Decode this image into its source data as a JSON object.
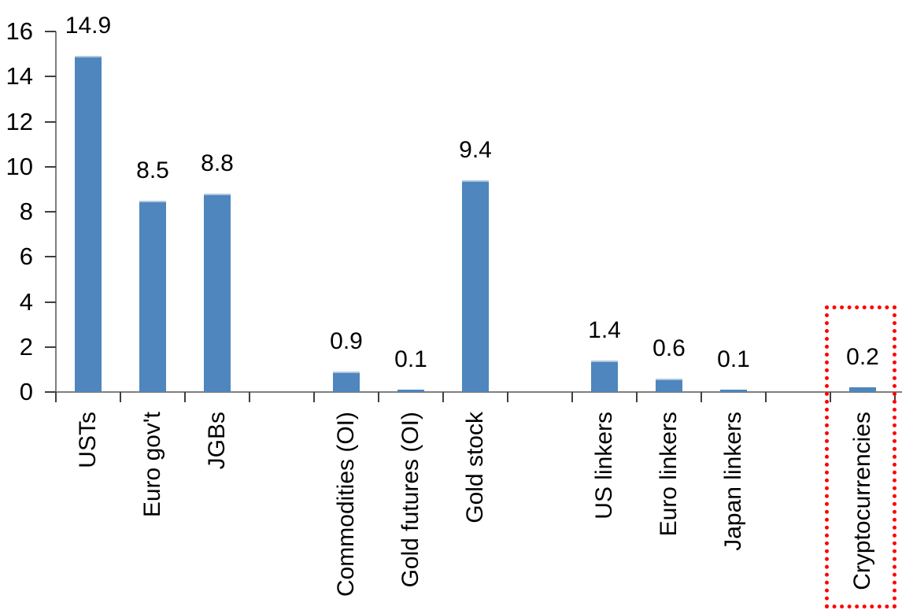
{
  "chart_data": {
    "type": "bar",
    "title": "",
    "xlabel": "",
    "ylabel": "",
    "ylim": [
      0,
      16
    ],
    "yticks": [
      0,
      2,
      4,
      6,
      8,
      10,
      12,
      14,
      16
    ],
    "grid": false,
    "legend": false,
    "categories": [
      "USTs",
      "Euro gov't",
      "JGBs",
      "Commodities (OI)",
      "Gold futures (OI)",
      "Gold stock",
      "US linkers",
      "Euro linkers",
      "Japan linkers",
      "Cryptocurrencies"
    ],
    "values": [
      14.9,
      8.5,
      8.8,
      0.9,
      0.1,
      9.4,
      1.4,
      0.6,
      0.1,
      0.2
    ],
    "slots": [
      {
        "label": "USTs",
        "value": 14.9,
        "value_label": "14.9"
      },
      {
        "label": "Euro gov't",
        "value": 8.5,
        "value_label": "8.5"
      },
      {
        "label": "JGBs",
        "value": 8.8,
        "value_label": "8.8"
      },
      null,
      {
        "label": "Commodities (OI)",
        "value": 0.9,
        "value_label": "0.9"
      },
      {
        "label": "Gold futures (OI)",
        "value": 0.1,
        "value_label": "0.1"
      },
      {
        "label": "Gold stock",
        "value": 9.4,
        "value_label": "9.4"
      },
      null,
      {
        "label": "US linkers",
        "value": 1.4,
        "value_label": "1.4"
      },
      {
        "label": "Euro linkers",
        "value": 0.6,
        "value_label": "0.6"
      },
      {
        "label": "Japan linkers",
        "value": 0.1,
        "value_label": "0.1"
      },
      null,
      {
        "label": "Cryptocurrencies",
        "value": 0.2,
        "value_label": "0.2",
        "highlighted": true
      }
    ],
    "colors": {
      "bar_fill": "#4e86bd",
      "bar_top_edge": "#aec6e0",
      "axis_line": "#7f7f7f",
      "tick_mark": "#3f3f3f",
      "text": "#000000",
      "highlight_border": "#ff0000"
    },
    "highlight": {
      "category": "Cryptocurrencies",
      "style": "red-dotted-rectangle"
    }
  }
}
